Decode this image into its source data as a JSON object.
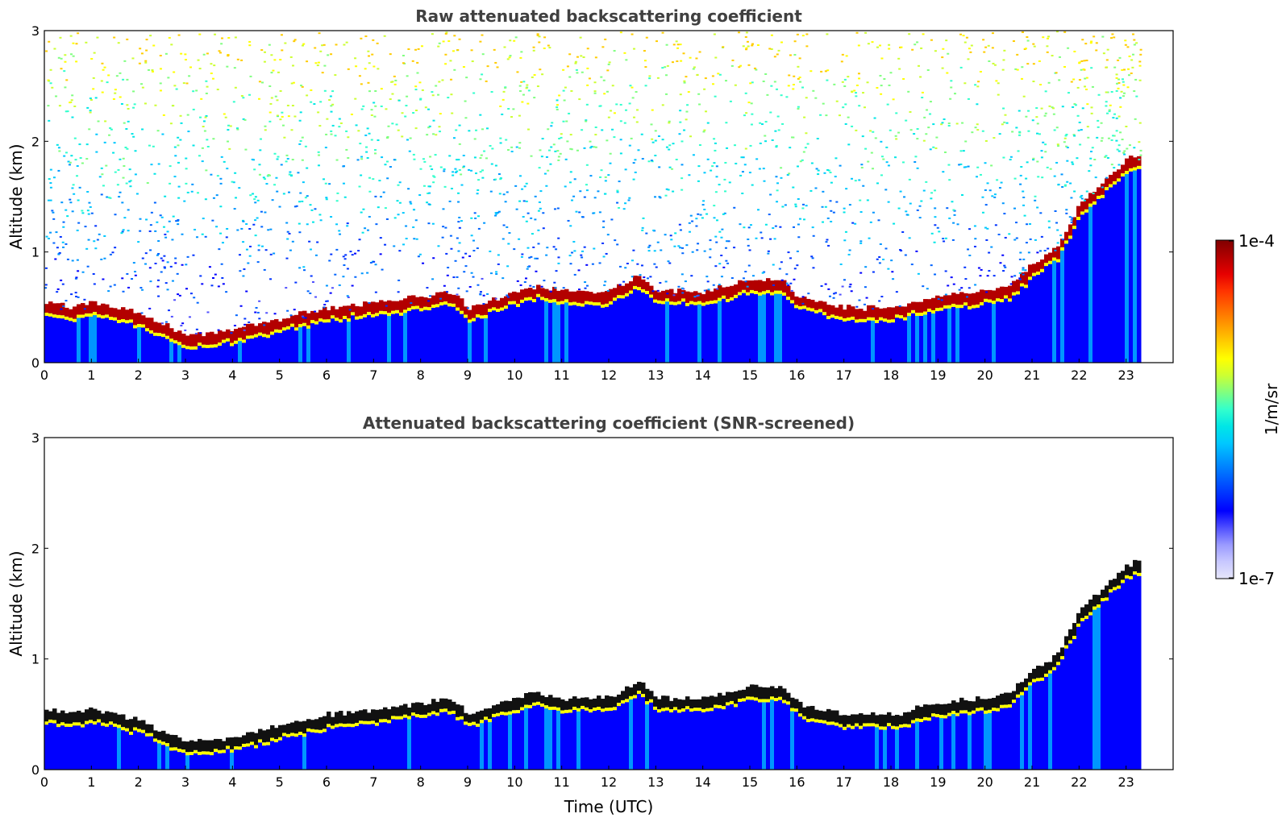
{
  "figure": {
    "colorbar": {
      "max_label": "1e-4",
      "min_label": "1e-7",
      "unit_label": "1/m/sr",
      "scale": "log",
      "colors": [
        "#e6e6fa",
        "#c8c8ff",
        "#9a9aff",
        "#5050ff",
        "#0000ff",
        "#0032ff",
        "#0064ff",
        "#0096ff",
        "#00c8ff",
        "#00e6e6",
        "#33ffcc",
        "#80ff80",
        "#ccff33",
        "#ffff00",
        "#ffcc00",
        "#ff9900",
        "#ff6600",
        "#ff3300",
        "#e60000",
        "#b30000",
        "#800000"
      ]
    }
  },
  "chart_data": [
    {
      "type": "heatmap",
      "title": "Raw attenuated backscattering coefficient",
      "xlabel": "",
      "ylabel": "Altitude (km)",
      "xlim": [
        0,
        24
      ],
      "ylim": [
        0,
        3
      ],
      "xticks": [
        "0",
        "1",
        "2",
        "3",
        "4",
        "5",
        "6",
        "7",
        "8",
        "9",
        "10",
        "11",
        "12",
        "13",
        "14",
        "15",
        "16",
        "17",
        "18",
        "19",
        "20",
        "21",
        "22",
        "23"
      ],
      "yticks": [
        "0",
        "1",
        "2",
        "3"
      ],
      "data_end_hour": 23.3,
      "layer_top_km": {
        "hours": [
          0,
          0.5,
          1,
          1.5,
          2,
          2.5,
          3,
          4,
          5,
          6,
          7,
          8,
          8.6,
          9,
          10,
          10.5,
          11,
          12,
          12.6,
          13,
          14,
          15,
          15.7,
          16,
          17,
          18,
          19,
          20,
          20.5,
          21,
          21.5,
          22,
          22.5,
          23,
          23.3
        ],
        "altitude": [
          0.5,
          0.45,
          0.5,
          0.45,
          0.4,
          0.3,
          0.2,
          0.25,
          0.35,
          0.45,
          0.5,
          0.55,
          0.6,
          0.45,
          0.6,
          0.65,
          0.6,
          0.6,
          0.75,
          0.6,
          0.6,
          0.7,
          0.7,
          0.55,
          0.45,
          0.45,
          0.55,
          0.6,
          0.65,
          0.85,
          1.0,
          1.4,
          1.6,
          1.8,
          1.85
        ]
      }
    },
    {
      "type": "heatmap",
      "title": "Attenuated backscattering coefficient (SNR-screened)",
      "xlabel": "Time (UTC)",
      "ylabel": "Altitude (km)",
      "xlim": [
        0,
        24
      ],
      "ylim": [
        0,
        3
      ],
      "xticks": [
        "0",
        "1",
        "2",
        "3",
        "4",
        "5",
        "6",
        "7",
        "8",
        "9",
        "10",
        "11",
        "12",
        "13",
        "14",
        "15",
        "16",
        "17",
        "18",
        "19",
        "20",
        "21",
        "22",
        "23"
      ],
      "yticks": [
        "0",
        "1",
        "2",
        "3"
      ],
      "data_end_hour": 23.3
    }
  ]
}
